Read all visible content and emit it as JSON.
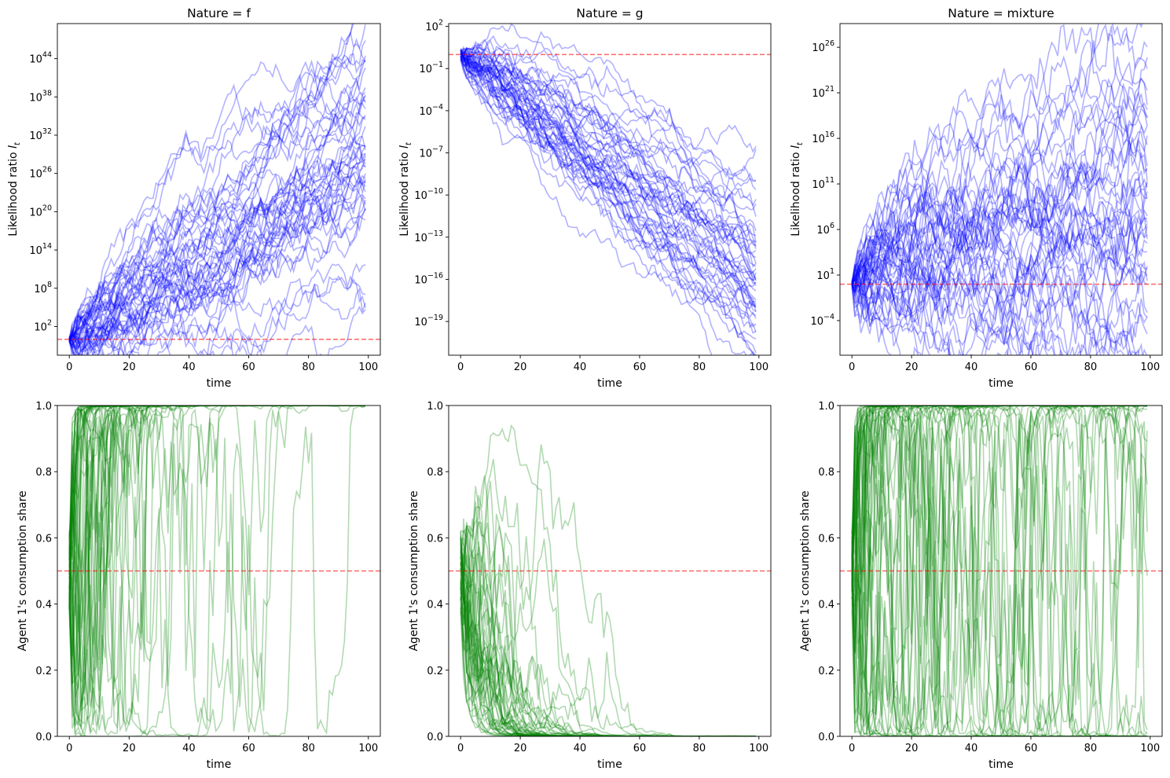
{
  "chart_data": [
    {
      "type": "line",
      "title": "Nature = f",
      "xlabel": "time",
      "ylabel": "Likelihood ratio ",
      "ylabel_math": "l",
      "ylabel_sub": "t",
      "yscale": "log",
      "xlim": [
        -4,
        104
      ],
      "ylim_log10": [
        -2.5,
        49.5
      ],
      "xticks": [
        0,
        20,
        40,
        60,
        80,
        100
      ],
      "yticks_log10": [
        2,
        8,
        14,
        20,
        26,
        32,
        38,
        44
      ],
      "reference_line": {
        "value_log10": 0,
        "color": "#ff0000",
        "style": "dashed"
      },
      "series_summary": {
        "count": 50,
        "n_steps": 100,
        "start_log10": 0,
        "mean_slope_log10_per_step": 0.31,
        "step_sd_log10": 1.15,
        "color": "#0000ff",
        "opacity": 0.3
      },
      "grid": false
    },
    {
      "type": "line",
      "title": "Nature = g",
      "xlabel": "time",
      "ylabel": "Likelihood ratio ",
      "ylabel_math": "l",
      "ylabel_sub": "t",
      "yscale": "log",
      "xlim": [
        -4,
        104
      ],
      "ylim_log10": [
        -21.4,
        2.2
      ],
      "xticks": [
        0,
        20,
        40,
        60,
        80,
        100
      ],
      "yticks_log10": [
        -19,
        -16,
        -13,
        -10,
        -7,
        -4,
        -1,
        2
      ],
      "reference_line": {
        "value_log10": 0,
        "color": "#ff0000",
        "style": "dashed"
      },
      "series_summary": {
        "count": 50,
        "n_steps": 100,
        "start_log10": 0,
        "mean_slope_log10_per_step": -0.165,
        "step_sd_log10": 0.35,
        "color": "#0000ff",
        "opacity": 0.3
      },
      "grid": false
    },
    {
      "type": "line",
      "title": "Nature = mixture",
      "xlabel": "time",
      "ylabel": "Likelihood ratio ",
      "ylabel_math": "l",
      "ylabel_sub": "t",
      "yscale": "log",
      "xlim": [
        -4,
        104
      ],
      "ylim_log10": [
        -7.8,
        28.6
      ],
      "xticks": [
        0,
        20,
        40,
        60,
        80,
        100
      ],
      "yticks_log10": [
        -4,
        1,
        6,
        11,
        16,
        21,
        26
      ],
      "reference_line": {
        "value_log10": 0,
        "color": "#ff0000",
        "style": "dashed"
      },
      "series_summary": {
        "count": 50,
        "n_steps": 100,
        "start_log10": 0,
        "mean_slope_log10_per_step": 0.07,
        "step_sd_log10": 1.3,
        "color": "#0000ff",
        "opacity": 0.3
      },
      "grid": false
    },
    {
      "type": "line",
      "title": "",
      "xlabel": "time",
      "ylabel": "Agent 1's consumption share",
      "xlim": [
        -4,
        104
      ],
      "ylim": [
        0,
        1
      ],
      "xticks": [
        0,
        20,
        40,
        60,
        80,
        100
      ],
      "yticks": [
        "0.0",
        "0.2",
        "0.4",
        "0.6",
        "0.8",
        "1.0"
      ],
      "reference_line": {
        "value": 0.5,
        "color": "#ff0000",
        "style": "dashed"
      },
      "series_summary": {
        "count": 50,
        "n_steps": 100,
        "color": "#008000",
        "opacity": 0.3
      },
      "grid": false
    },
    {
      "type": "line",
      "title": "",
      "xlabel": "time",
      "ylabel": "Agent 1's consumption share",
      "xlim": [
        -4,
        104
      ],
      "ylim": [
        0,
        1
      ],
      "xticks": [
        0,
        20,
        40,
        60,
        80,
        100
      ],
      "yticks": [
        "0.0",
        "0.2",
        "0.4",
        "0.6",
        "0.8",
        "1.0"
      ],
      "reference_line": {
        "value": 0.5,
        "color": "#ff0000",
        "style": "dashed"
      },
      "series_summary": {
        "count": 50,
        "n_steps": 100,
        "color": "#008000",
        "opacity": 0.3
      },
      "grid": false
    },
    {
      "type": "line",
      "title": "",
      "xlabel": "time",
      "ylabel": "Agent 1's consumption share",
      "xlim": [
        -4,
        104
      ],
      "ylim": [
        0,
        1
      ],
      "xticks": [
        0,
        20,
        40,
        60,
        80,
        100
      ],
      "yticks": [
        "0.0",
        "0.2",
        "0.4",
        "0.6",
        "0.8",
        "1.0"
      ],
      "reference_line": {
        "value": 0.5,
        "color": "#ff0000",
        "style": "dashed"
      },
      "series_summary": {
        "count": 50,
        "n_steps": 100,
        "color": "#008000",
        "opacity": 0.3
      },
      "grid": false
    }
  ],
  "colors": {
    "line_upper": "#0000ff",
    "line_lower": "#008000",
    "reference": "#ff0000"
  }
}
